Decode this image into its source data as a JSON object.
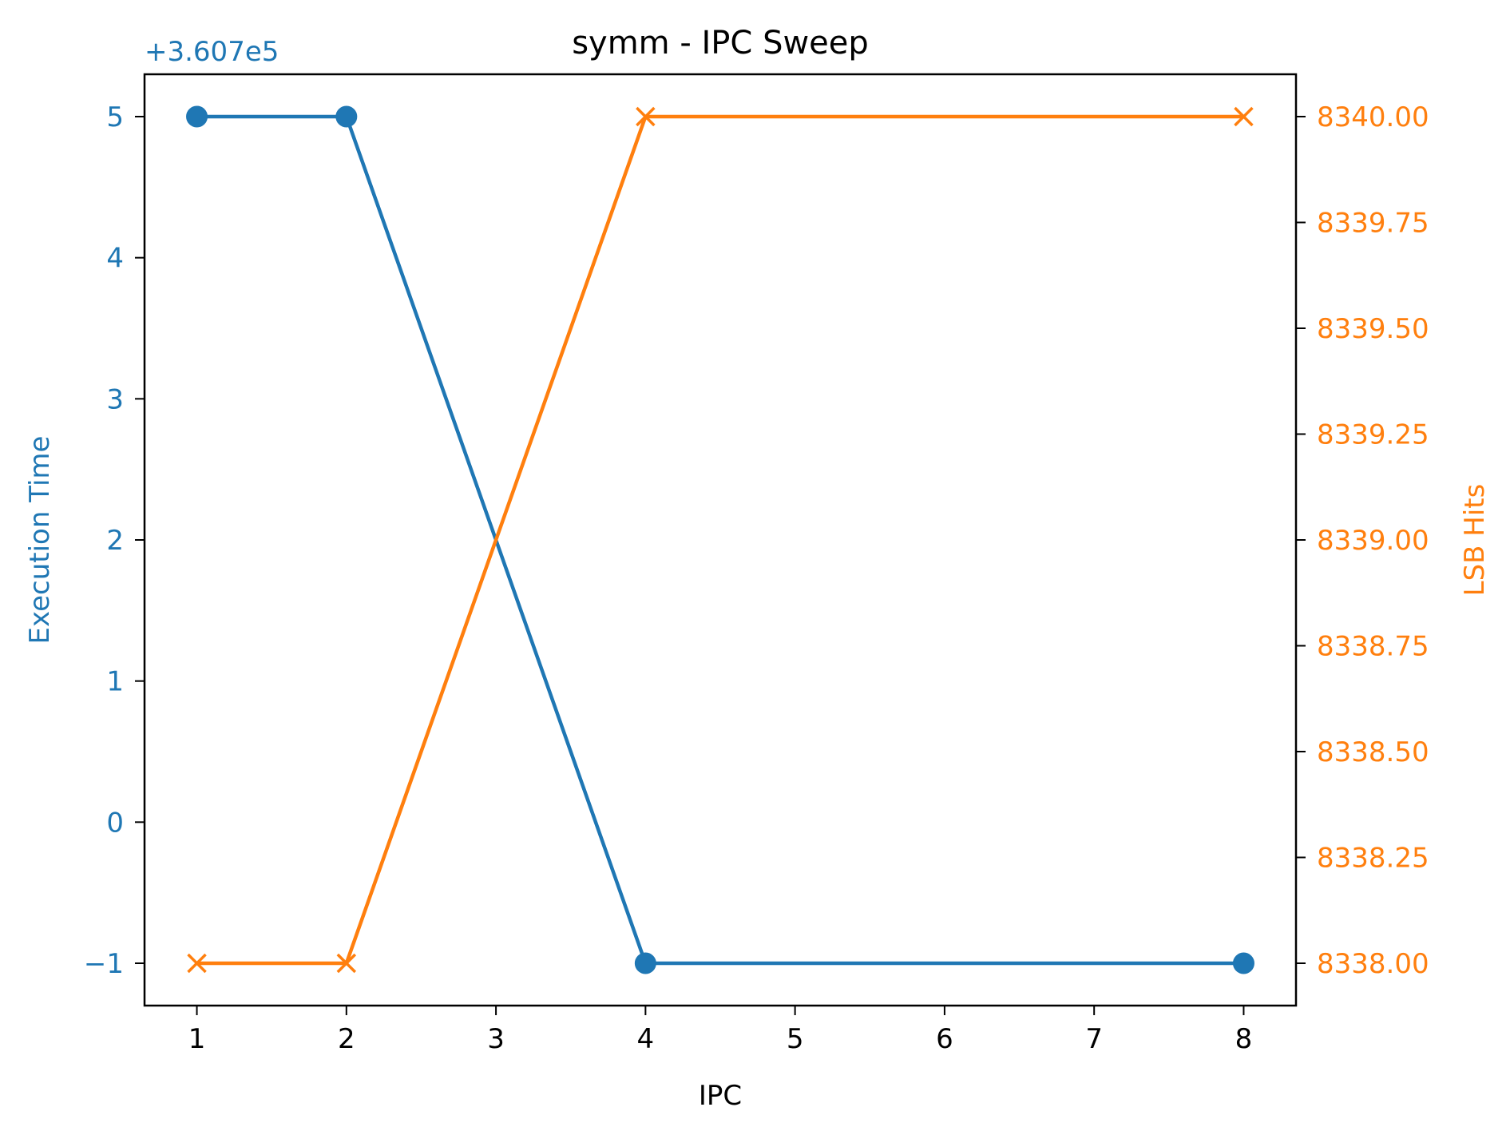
{
  "chart_data": {
    "type": "line",
    "title": "symm - IPC Sweep",
    "xlabel": "IPC",
    "x": [
      1,
      2,
      4,
      8
    ],
    "xticks": [
      1,
      2,
      3,
      4,
      5,
      6,
      7,
      8
    ],
    "xlim": [
      0.65,
      8.35
    ],
    "grid": false,
    "series": [
      {
        "name": "Execution Time",
        "axis": "left",
        "values": [
          5,
          5,
          -1,
          -1
        ],
        "marker": "circle",
        "color": "#1f77b4"
      },
      {
        "name": "LSB Hits",
        "axis": "right",
        "values": [
          8338.0,
          8338.0,
          8340.0,
          8340.0
        ],
        "marker": "x",
        "color": "#ff7f0e"
      }
    ],
    "y_left": {
      "label": "Execution Time",
      "offset_text": "+3.607e5",
      "ticks": [
        -1,
        0,
        1,
        2,
        3,
        4,
        5
      ],
      "tick_labels": [
        "−1",
        "0",
        "1",
        "2",
        "3",
        "4",
        "5"
      ],
      "ylim": [
        -1.3,
        5.3
      ],
      "color": "#1f77b4"
    },
    "y_right": {
      "label": "LSB Hits",
      "ticks": [
        8338.0,
        8338.25,
        8338.5,
        8338.75,
        8339.0,
        8339.25,
        8339.5,
        8339.75,
        8340.0
      ],
      "tick_labels": [
        "8338.00",
        "8338.25",
        "8338.50",
        "8338.75",
        "8339.00",
        "8339.25",
        "8339.50",
        "8339.75",
        "8340.00"
      ],
      "ylim": [
        8337.9,
        8340.1
      ],
      "color": "#ff7f0e"
    }
  }
}
